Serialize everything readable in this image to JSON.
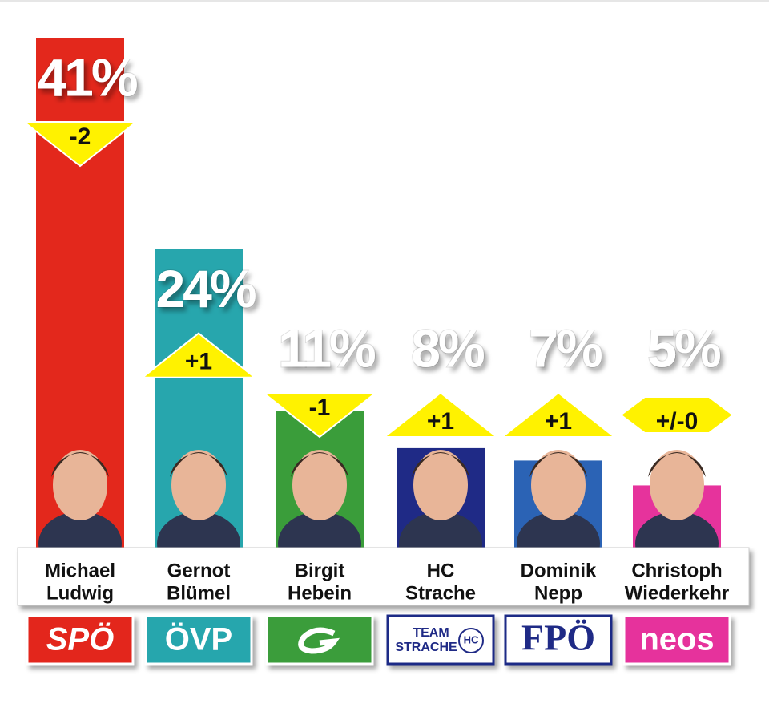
{
  "chart_data": {
    "type": "bar",
    "categories": [
      [
        "Michael",
        "Ludwig"
      ],
      [
        "Gernot",
        "Blümel"
      ],
      [
        "Birgit",
        "Hebein"
      ],
      [
        "HC",
        "Strache"
      ],
      [
        "Dominik",
        "Nepp"
      ],
      [
        "Christoph",
        "Wiederkehr"
      ]
    ],
    "values": [
      41,
      24,
      11,
      8,
      7,
      5
    ],
    "value_labels": [
      "41%",
      "24%",
      "11%",
      "8%",
      "7%",
      "5%"
    ],
    "changes": [
      -2,
      1,
      -1,
      1,
      1,
      0
    ],
    "change_labels": [
      "-2",
      "+1",
      "-1",
      "+1",
      "+1",
      "+/-0"
    ],
    "colors": [
      "#e3281c",
      "#27a6ad",
      "#3a9d3a",
      "#1f2a86",
      "#2b63b5",
      "#e6339c"
    ],
    "parties": [
      [
        "SPÖ"
      ],
      [
        "ÖVP"
      ],
      [],
      [
        "TEAM",
        "STRACHE",
        "HC"
      ],
      [
        "FPÖ"
      ],
      [
        "neos"
      ]
    ],
    "ylim": [
      0,
      41
    ]
  }
}
